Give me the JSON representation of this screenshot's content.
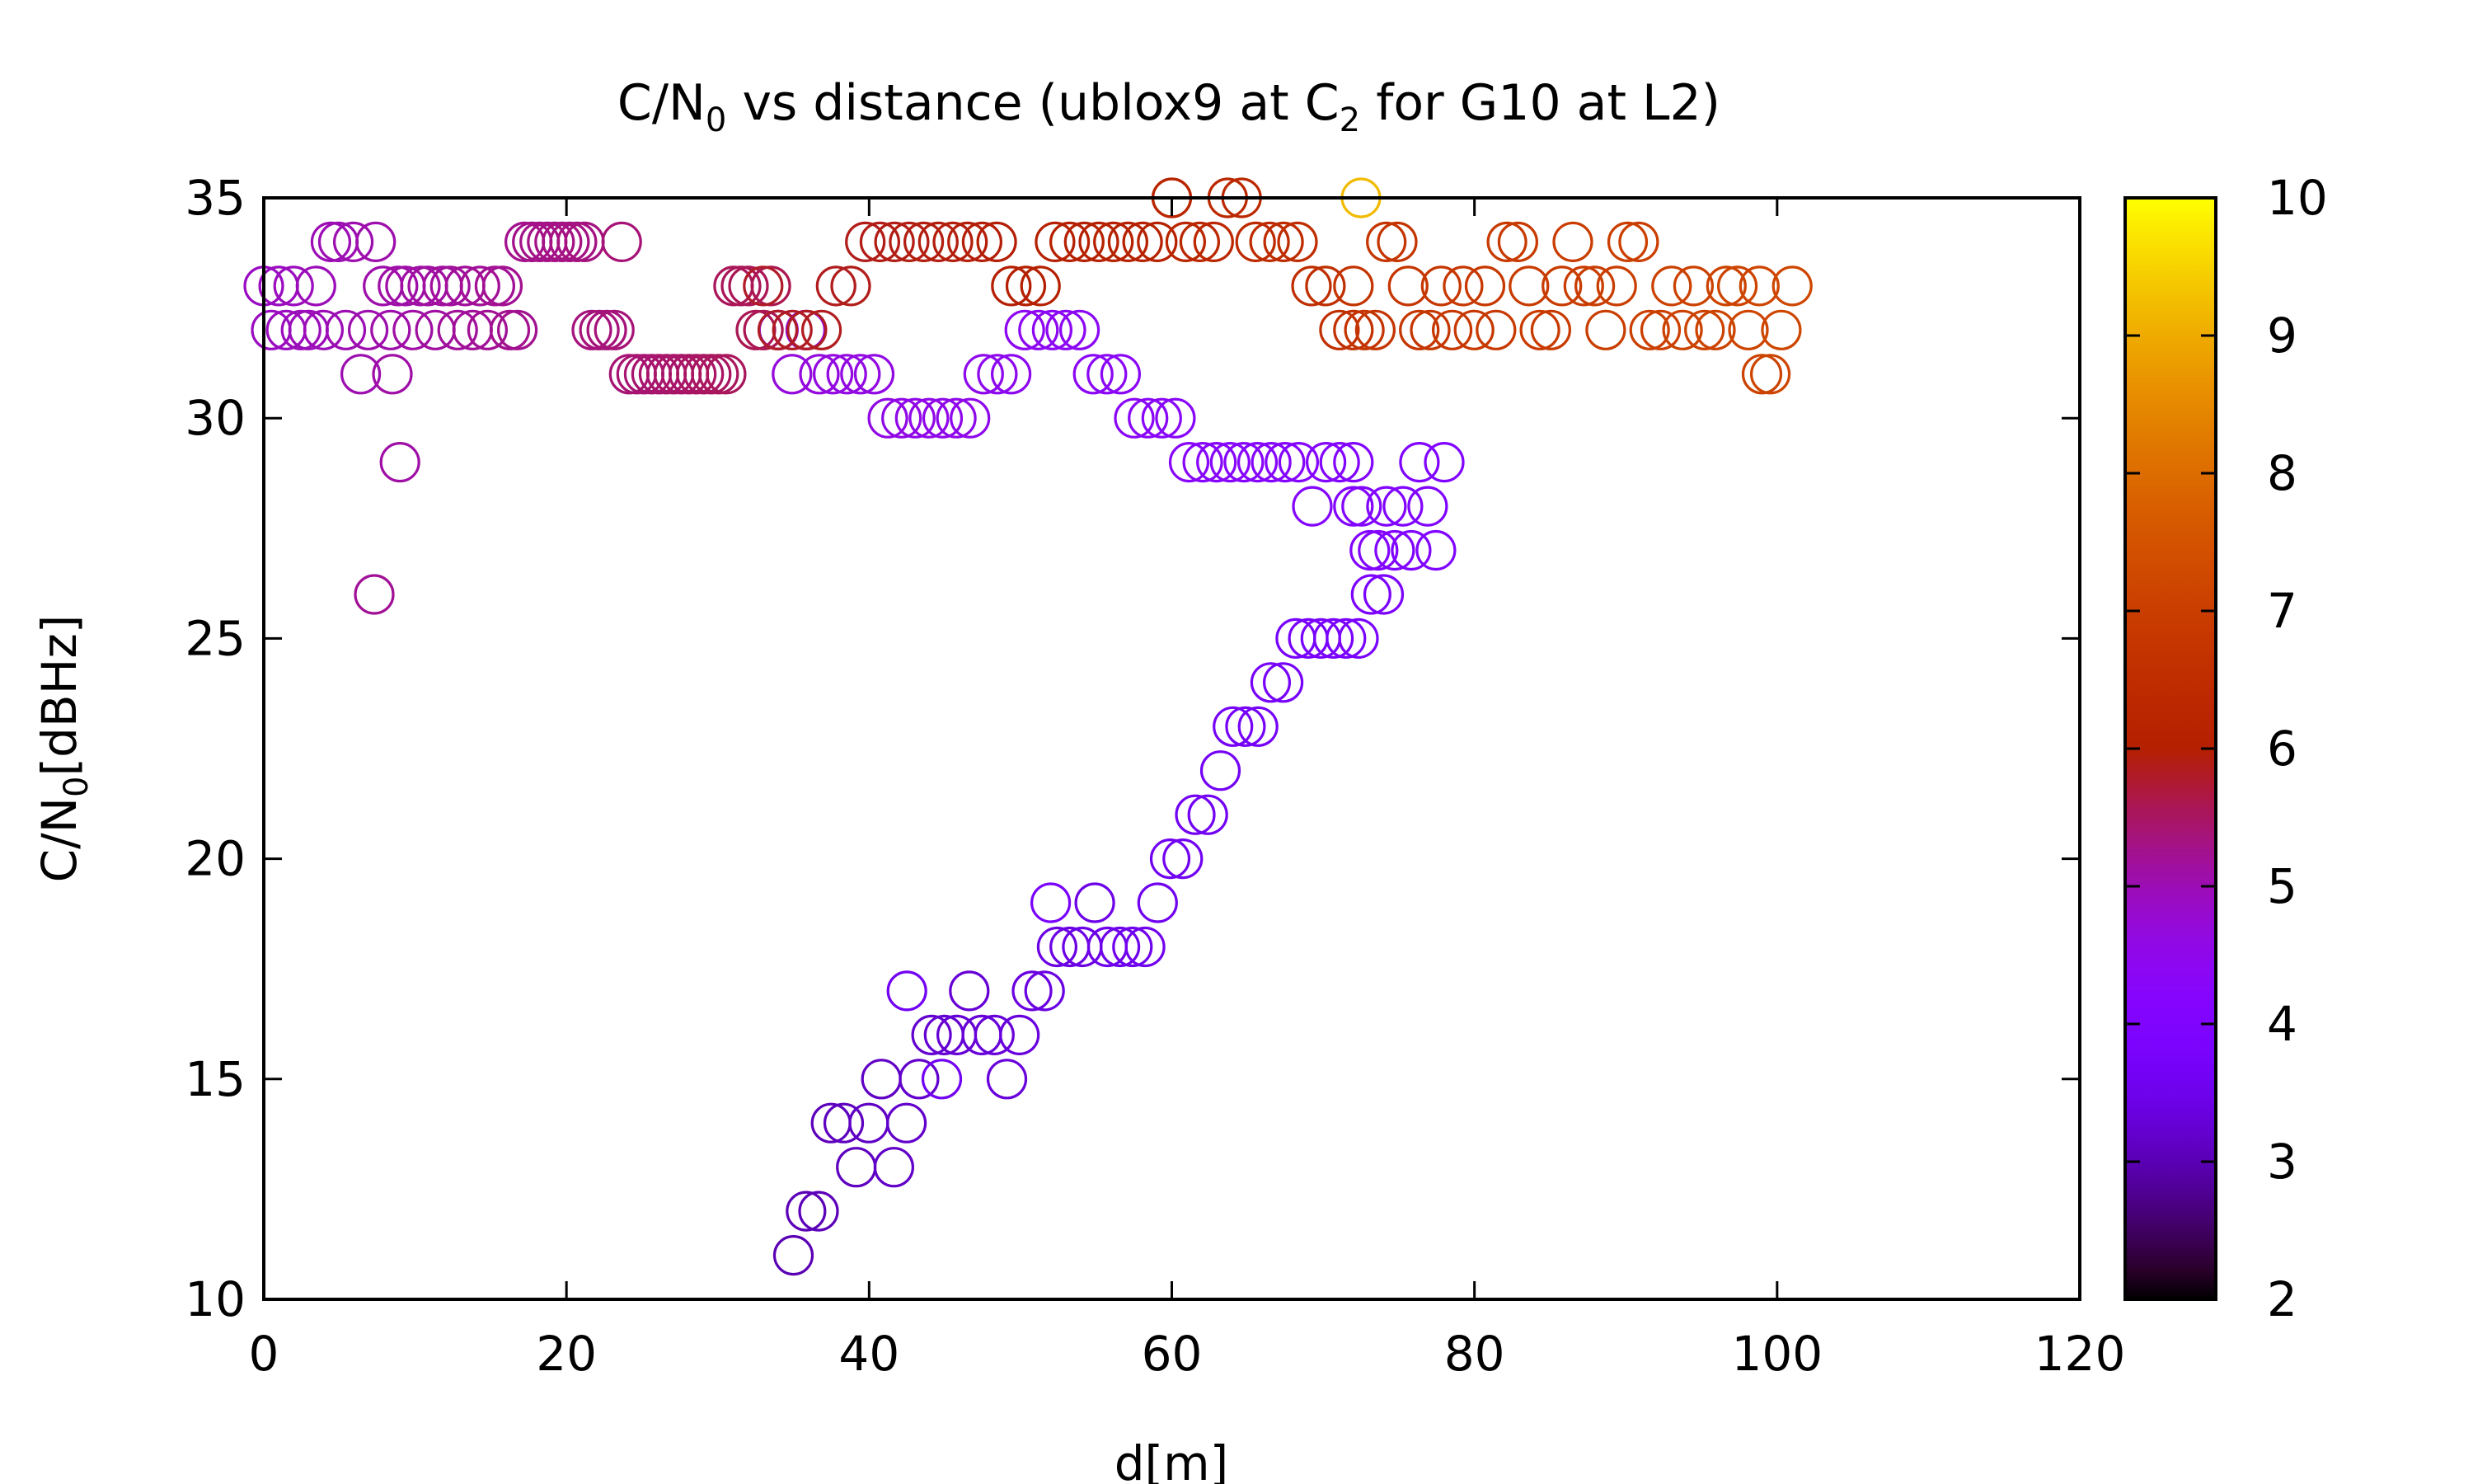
{
  "chart_data": {
    "type": "scatter",
    "title_parts": {
      "prefix": "C/N",
      "prefix_sub": "0",
      "middle": " vs distance (ublox9 at C",
      "middle_sub": "2",
      "suffix": " for G10 at L2)"
    },
    "xlabel": "d[m]",
    "ylabel_parts": {
      "main": "C/N",
      "sub": "0",
      "unit": "[dBHz]"
    },
    "xlim": [
      0,
      120
    ],
    "ylim": [
      10,
      35
    ],
    "x_ticks": [
      "0",
      "20",
      "40",
      "60",
      "80",
      "100",
      "120"
    ],
    "y_ticks": [
      "10",
      "15",
      "20",
      "25",
      "30",
      "35"
    ],
    "colorbar": {
      "range": [
        2,
        10
      ],
      "ticks": [
        "2",
        "3",
        "4",
        "5",
        "6",
        "7",
        "8",
        "9",
        "10"
      ],
      "palette": "gnuplot (black-purple-red-orange-yellow)"
    },
    "marker": "open-circle",
    "grid": false,
    "segments": [
      {
        "name": "approach-upper",
        "x0": 0,
        "x1": 34,
        "c0": 4.9,
        "c1": 5.6,
        "y": [
          33,
          32,
          33,
          32,
          33,
          32,
          32,
          33,
          32,
          34,
          34,
          32,
          34,
          31,
          32,
          34,
          33,
          32,
          33,
          33,
          32,
          33,
          33,
          32,
          33,
          33,
          32,
          33,
          32,
          33,
          32,
          33,
          33,
          32,
          32,
          34,
          34,
          34,
          34,
          34,
          34,
          34,
          34,
          34,
          32,
          32,
          32,
          32,
          34,
          31,
          31,
          31,
          31,
          31,
          31,
          31,
          31,
          31,
          31,
          31,
          31,
          31,
          31,
          33,
          33,
          33,
          32,
          32,
          33,
          32
        ]
      },
      {
        "name": "approach-mid",
        "x0": 34,
        "x1": 72,
        "c0": 4.7,
        "c1": 4.1,
        "y": [
          32,
          31,
          32,
          31,
          31,
          31,
          31,
          31,
          30,
          30,
          30,
          30,
          30,
          30,
          30,
          31,
          31,
          31,
          32,
          32,
          32,
          32,
          32,
          31,
          31,
          31,
          30,
          30,
          30,
          30,
          29,
          29,
          29,
          29,
          29,
          29,
          29,
          29,
          29,
          28,
          29,
          29,
          29
        ]
      },
      {
        "name": "turnaround",
        "x0": 72,
        "x1": 78,
        "c0": 4.1,
        "c1": 4.0,
        "y": [
          28,
          28,
          27,
          27,
          28,
          27,
          28,
          27,
          29,
          28,
          27,
          29
        ]
      },
      {
        "name": "return-rising",
        "x0": 35,
        "x1": 74,
        "c0": 3.0,
        "c1": 3.9,
        "y": [
          11,
          12,
          12,
          14,
          14,
          13,
          14,
          15,
          13,
          14,
          15,
          16,
          16,
          16,
          17,
          16,
          16,
          15,
          16,
          17,
          17,
          18,
          18,
          18,
          19,
          18,
          18,
          18,
          18,
          19,
          20,
          20,
          21,
          21,
          22,
          23,
          23,
          23,
          24,
          24,
          25,
          25,
          25,
          25,
          25,
          25,
          26,
          26
        ]
      },
      {
        "name": "departure-dark-red",
        "x0": 33,
        "x1": 60,
        "c0": 5.8,
        "c1": 6.1,
        "y": [
          33,
          32,
          32,
          32,
          32,
          33,
          33,
          34,
          34,
          34,
          34,
          34,
          34,
          34,
          34,
          34,
          34,
          33,
          33,
          33,
          34,
          34,
          34,
          34,
          34,
          34,
          34,
          34,
          35
        ]
      },
      {
        "name": "departure-red",
        "x0": 60,
        "x1": 72,
        "c0": 6.2,
        "c1": 6.6,
        "y": [
          35,
          34,
          34,
          34,
          35,
          35,
          34,
          34,
          34,
          34,
          33,
          33,
          32,
          32
        ]
      },
      {
        "name": "departure-orange",
        "x0": 72,
        "x1": 101,
        "c0": 6.7,
        "c1": 7.2,
        "y": [
          33,
          32,
          32,
          34,
          34,
          33,
          32,
          32,
          33,
          32,
          33,
          32,
          33,
          32,
          34,
          34,
          33,
          32,
          32,
          33,
          34,
          33,
          33,
          32,
          33,
          34,
          34,
          32,
          32,
          33,
          32,
          33,
          32,
          32,
          33,
          33,
          32,
          33,
          31,
          32,
          33
        ]
      }
    ],
    "isolated_points": [
      {
        "x": 7.3,
        "y": 26,
        "c": 5.2
      },
      {
        "x": 8.5,
        "y": 31,
        "c": 5.1
      },
      {
        "x": 9.0,
        "y": 29,
        "c": 5.1
      },
      {
        "x": 72.5,
        "y": 35,
        "c": 9.2
      },
      {
        "x": 52.0,
        "y": 19,
        "c": 3.8
      },
      {
        "x": 42.5,
        "y": 17,
        "c": 3.6
      },
      {
        "x": 44.8,
        "y": 15,
        "c": 3.6
      },
      {
        "x": 99.0,
        "y": 31,
        "c": 7.1
      }
    ]
  }
}
